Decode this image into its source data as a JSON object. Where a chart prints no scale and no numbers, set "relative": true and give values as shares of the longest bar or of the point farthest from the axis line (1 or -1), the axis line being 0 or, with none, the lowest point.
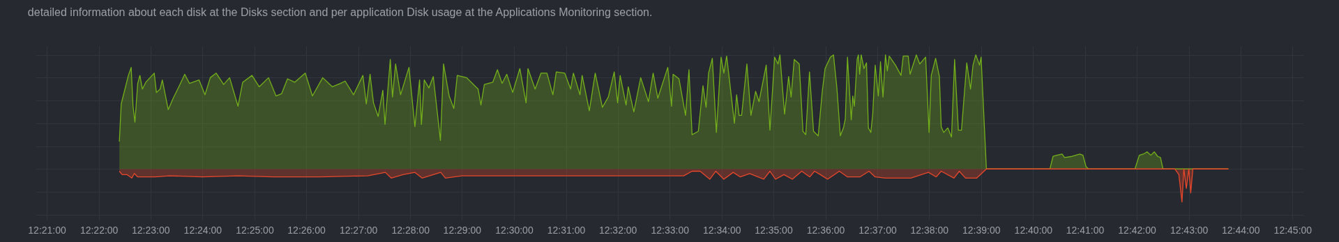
{
  "chart_data": {
    "type": "area",
    "relative": true,
    "title": "detailed information about each disk at the Disks section and per application Disk usage at the Applications Monitoring section.",
    "grid": true,
    "xlim": [
      12.3464,
      12.7535
    ],
    "xticks": [
      {
        "value": 12.35,
        "label": "12:21:00"
      },
      {
        "value": 12.3667,
        "label": "12:22:00"
      },
      {
        "value": 12.3833,
        "label": "12:23:00"
      },
      {
        "value": 12.4,
        "label": "12:24:00"
      },
      {
        "value": 12.4167,
        "label": "12:25:00"
      },
      {
        "value": 12.4333,
        "label": "12:26:00"
      },
      {
        "value": 12.45,
        "label": "12:27:00"
      },
      {
        "value": 12.4667,
        "label": "12:28:00"
      },
      {
        "value": 12.4833,
        "label": "12:29:00"
      },
      {
        "value": 12.5,
        "label": "12:30:00"
      },
      {
        "value": 12.5167,
        "label": "12:31:00"
      },
      {
        "value": 12.5333,
        "label": "12:32:00"
      },
      {
        "value": 12.55,
        "label": "12:33:00"
      },
      {
        "value": 12.5667,
        "label": "12:34:00"
      },
      {
        "value": 12.5833,
        "label": "12:35:00"
      },
      {
        "value": 12.6,
        "label": "12:36:00"
      },
      {
        "value": 12.6167,
        "label": "12:37:00"
      },
      {
        "value": 12.6333,
        "label": "12:38:00"
      },
      {
        "value": 12.65,
        "label": "12:39:00"
      },
      {
        "value": 12.6667,
        "label": "12:40:00"
      },
      {
        "value": 12.6833,
        "label": "12:41:00"
      },
      {
        "value": 12.7,
        "label": "12:42:00"
      },
      {
        "value": 12.7167,
        "label": "12:43:00"
      },
      {
        "value": 12.7333,
        "label": "12:44:00"
      },
      {
        "value": 12.75,
        "label": "12:45:00"
      }
    ],
    "series": [
      {
        "color": "#74b01a",
        "x": [
          12.3733,
          12.3739,
          12.3762,
          12.3771,
          12.3777,
          12.3783,
          12.3792,
          12.3799,
          12.3807,
          12.3818,
          12.3845,
          12.3852,
          12.3864,
          12.3871,
          12.389,
          12.3906,
          12.3924,
          12.3943,
          12.3958,
          12.3989,
          12.4008,
          12.4025,
          12.4044,
          12.4068,
          12.4087,
          12.4114,
          12.4129,
          12.4159,
          12.4182,
          12.4212,
          12.4236,
          12.4254,
          12.4273,
          12.4296,
          12.433,
          12.4353,
          12.4386,
          12.4417,
          12.4443,
          12.4458,
          12.4485,
          12.4515,
          12.4526,
          12.4538,
          12.4549,
          12.4564,
          12.4579,
          12.4586,
          12.4603,
          12.461,
          12.462,
          12.4636,
          12.4663,
          12.4682,
          12.4697,
          12.4703,
          12.4712,
          12.4727,
          12.4741,
          12.4764,
          12.4774,
          12.4792,
          12.4807,
          12.4818,
          12.4848,
          12.4885,
          12.4894,
          12.4905,
          12.4932,
          12.4947,
          12.4962,
          12.4977,
          12.4996,
          12.5019,
          12.5039,
          12.5045,
          12.5068,
          12.5087,
          12.5106,
          12.5125,
          12.5136,
          12.5163,
          12.5182,
          12.5191,
          12.5212,
          12.5219,
          12.5242,
          12.5261,
          12.5284,
          12.5303,
          12.5322,
          12.5333,
          12.5341,
          12.536,
          12.5367,
          12.5385,
          12.5407,
          12.5432,
          12.5447,
          12.5462,
          12.5494,
          12.5506,
          12.5511,
          12.553,
          12.5551,
          12.5562,
          12.5572,
          12.5592,
          12.5607,
          12.5617,
          12.5625,
          12.5637,
          12.565,
          12.5665,
          12.5674,
          12.5683,
          12.5689,
          12.5708,
          12.5715,
          12.5723,
          12.5731,
          12.5748,
          12.5761,
          12.5776,
          12.5787,
          12.581,
          12.5822,
          12.5837,
          12.5848,
          12.5854,
          12.5869,
          12.5882,
          12.589,
          12.59,
          12.5916,
          12.5928,
          12.5937,
          12.5949,
          12.5962,
          12.5977,
          12.599,
          12.5999,
          12.6016,
          12.6026,
          12.6037,
          12.6048,
          12.6058,
          12.6064,
          12.6071,
          12.6083,
          12.6088,
          12.6093,
          12.6102,
          12.6106,
          12.611,
          12.6115,
          12.6124,
          12.6132,
          12.6138,
          12.6146,
          12.6152,
          12.616,
          12.617,
          12.6177,
          12.6185,
          12.6193,
          12.6199,
          12.6205,
          12.6225,
          12.6243,
          12.625,
          12.6266,
          12.6272,
          12.6292,
          12.6303,
          12.6322,
          12.6333,
          12.634,
          12.6354,
          12.6366,
          12.6372,
          12.638,
          12.6393,
          12.6405,
          12.6415,
          12.6427,
          12.6437,
          12.6454,
          12.6466,
          12.6474,
          12.6483,
          12.6495,
          12.65,
          12.6517,
          12.6721,
          12.6731,
          12.6743,
          12.676,
          12.6768,
          12.6792,
          12.6817,
          12.6827,
          12.6837,
          12.6845,
          12.6994,
          12.7008,
          12.7021,
          12.7033,
          12.7045,
          12.7056,
          12.7067,
          12.7076,
          12.7084,
          12.7294
        ],
        "values": [
          0.24,
          0.57,
          0.82,
          0.89,
          0.55,
          0.41,
          0.75,
          0.82,
          0.7,
          0.76,
          0.84,
          0.67,
          0.7,
          0.78,
          0.52,
          0.62,
          0.72,
          0.83,
          0.75,
          0.78,
          0.65,
          0.8,
          0.84,
          0.74,
          0.8,
          0.55,
          0.76,
          0.82,
          0.72,
          0.8,
          0.64,
          0.66,
          0.79,
          0.76,
          0.84,
          0.64,
          0.8,
          0.72,
          0.75,
          0.77,
          0.65,
          0.82,
          0.57,
          0.83,
          0.58,
          0.46,
          0.69,
          0.39,
          0.96,
          0.63,
          0.92,
          0.65,
          0.89,
          0.37,
          0.78,
          0.39,
          0.78,
          0.71,
          0.81,
          0.25,
          0.92,
          0.64,
          0.53,
          0.82,
          0.8,
          0.7,
          0.56,
          0.74,
          0.76,
          0.87,
          0.75,
          0.83,
          0.67,
          0.88,
          0.58,
          0.88,
          0.7,
          0.84,
          0.84,
          0.65,
          0.85,
          0.84,
          0.7,
          0.84,
          0.65,
          0.82,
          0.51,
          0.84,
          0.54,
          0.63,
          0.85,
          0.58,
          0.82,
          0.56,
          0.72,
          0.5,
          0.8,
          0.59,
          0.84,
          0.62,
          0.89,
          0.55,
          0.83,
          0.79,
          0.47,
          0.87,
          0.3,
          0.33,
          0.73,
          0.54,
          0.84,
          0.97,
          0.32,
          0.98,
          0.84,
          0.99,
          0.85,
          0.4,
          0.65,
          0.47,
          0.47,
          0.92,
          0.47,
          0.68,
          0.59,
          0.91,
          0.34,
          0.98,
          0.92,
          1.0,
          0.48,
          0.81,
          0.63,
          0.96,
          0.92,
          0.33,
          0.3,
          0.85,
          0.33,
          0.29,
          0.68,
          0.88,
          0.98,
          1.0,
          0.71,
          0.29,
          0.36,
          0.44,
          0.98,
          0.43,
          0.64,
          0.55,
          0.96,
          1.0,
          0.83,
          1.0,
          0.88,
          0.93,
          0.36,
          0.32,
          0.48,
          0.91,
          0.64,
          0.94,
          0.63,
          1.0,
          0.86,
          0.99,
          0.91,
          0.82,
          0.99,
          0.99,
          0.83,
          1.0,
          0.92,
          0.98,
          0.32,
          0.82,
          0.97,
          0.81,
          0.37,
          0.32,
          0.36,
          0.28,
          0.96,
          0.34,
          0.34,
          0.93,
          0.7,
          0.91,
          1.0,
          0.91,
          0.98,
          0,
          0,
          0.11,
          0.12,
          0.13,
          0.1,
          0.11,
          0.13,
          0.12,
          0.02,
          0,
          0,
          0.12,
          0.13,
          0.15,
          0.12,
          0.15,
          0.11,
          0.1,
          0,
          0
        ]
      },
      {
        "color": "#e8472b",
        "x": [
          12.3733,
          12.3742,
          12.3758,
          12.3773,
          12.3781,
          12.3792,
          12.3849,
          12.3894,
          12.4,
          12.4114,
          12.4227,
          12.4379,
          12.453,
          12.4568,
          12.4587,
          12.4606,
          12.4644,
          12.4682,
          12.4705,
          12.4765,
          12.478,
          12.4833,
          12.5242,
          12.5545,
          12.5572,
          12.5598,
          12.5629,
          12.5648,
          12.5674,
          12.5704,
          12.5727,
          12.5757,
          12.5802,
          12.5822,
          12.584,
          12.5867,
          12.5894,
          12.5924,
          12.595,
          12.5965,
          12.5984,
          12.6007,
          12.6045,
          12.6071,
          12.6111,
          12.614,
          12.616,
          12.6193,
          12.6274,
          12.6331,
          12.6356,
          12.6372,
          12.6413,
          12.643,
          12.645,
          12.6486,
          12.6517,
          12.7122,
          12.7135,
          12.7145,
          12.7151,
          12.7159,
          12.7167,
          12.7173,
          12.718,
          12.7294
        ],
        "values": [
          -0.02,
          -0.05,
          -0.05,
          -0.08,
          -0.04,
          -0.07,
          -0.07,
          -0.06,
          -0.07,
          -0.06,
          -0.07,
          -0.07,
          -0.06,
          -0.04,
          -0.03,
          -0.08,
          -0.05,
          -0.03,
          -0.08,
          -0.03,
          -0.08,
          -0.06,
          -0.06,
          -0.06,
          -0.02,
          -0.02,
          -0.09,
          -0.02,
          -0.09,
          -0.03,
          -0.07,
          -0.04,
          -0.09,
          -0.02,
          -0.09,
          -0.05,
          -0.09,
          -0.02,
          -0.07,
          -0.02,
          -0.05,
          -0.09,
          -0.02,
          -0.07,
          -0.07,
          -0.02,
          -0.07,
          -0.08,
          -0.08,
          -0.03,
          -0.07,
          -0.02,
          -0.08,
          -0.02,
          -0.08,
          -0.08,
          0,
          0,
          -0.05,
          -0.29,
          0,
          -0.17,
          0,
          -0.21,
          0,
          0
        ]
      }
    ]
  }
}
